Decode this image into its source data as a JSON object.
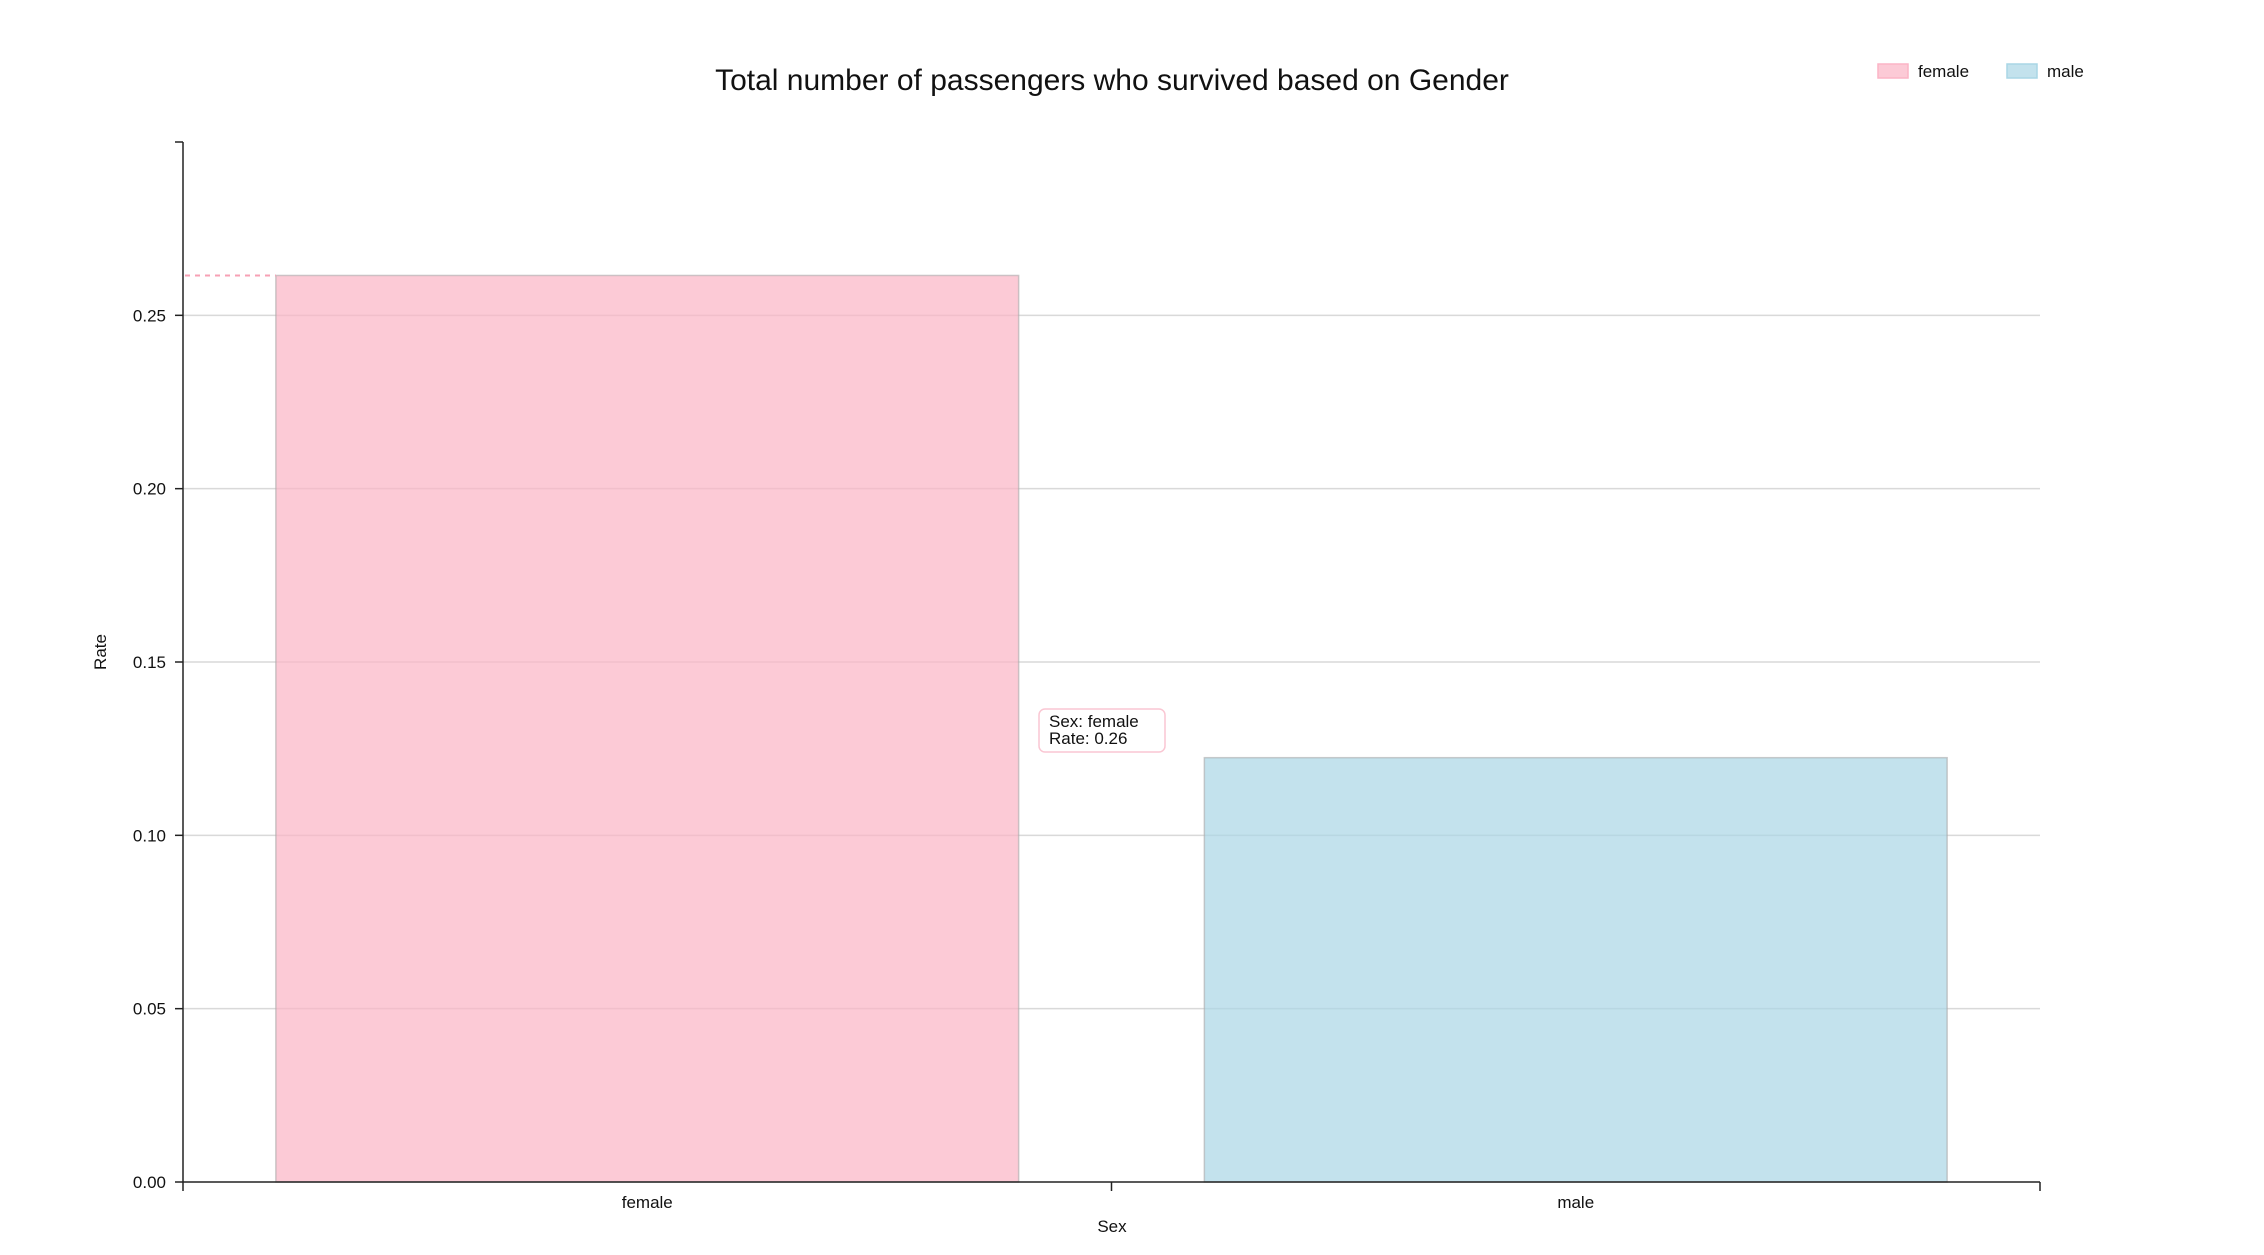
{
  "chart_data": {
    "type": "bar",
    "title": "Total number of passengers who survived based on Gender",
    "xlabel": "Sex",
    "ylabel": "Rate",
    "categories": [
      "female",
      "male"
    ],
    "values": [
      0.2615,
      0.1224
    ],
    "colors": [
      "#fbb4c5",
      "#a9d6e5"
    ],
    "ylim": [
      0,
      0.3
    ],
    "yticks": [
      "0.00",
      "0.05",
      "0.10",
      "0.15",
      "0.20",
      "0.25"
    ],
    "grid": true,
    "legend": {
      "position": "top-right",
      "entries": [
        {
          "label": "female",
          "color": "#fbb4c5"
        },
        {
          "label": "male",
          "color": "#a9d6e5"
        }
      ]
    },
    "tooltip": {
      "line1": "Sex: female",
      "line2": "Rate: 0.26",
      "accent_color": "#f7a1b5"
    }
  }
}
